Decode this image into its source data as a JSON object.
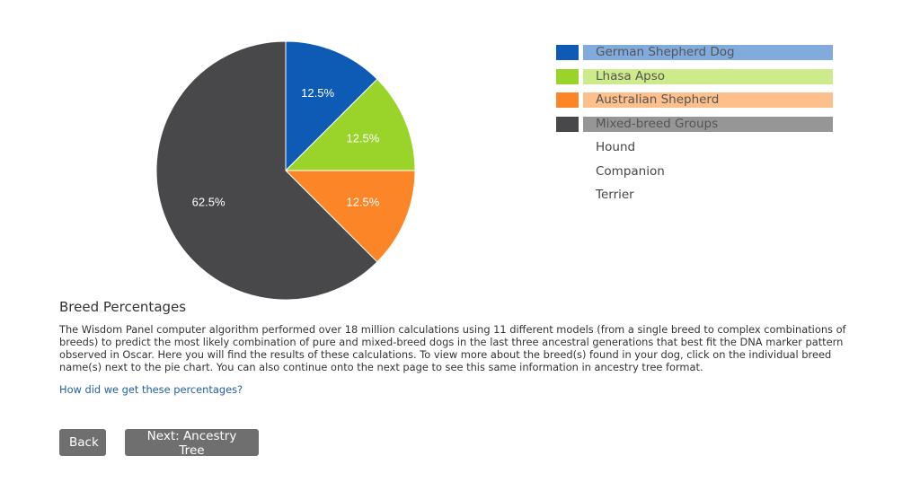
{
  "chart_data": {
    "type": "pie",
    "title": "",
    "slices": [
      {
        "label": "German Shepherd Dog",
        "value": 12.5,
        "display": "12.5%",
        "color": "#0d5bb5"
      },
      {
        "label": "Lhasa Apso",
        "value": 12.5,
        "display": "12.5%",
        "color": "#9ad42a"
      },
      {
        "label": "Australian Shepherd",
        "value": 12.5,
        "display": "12.5%",
        "color": "#fc8527"
      },
      {
        "label": "Mixed-breed Groups",
        "value": 62.5,
        "display": "62.5%",
        "color": "#48484a"
      }
    ],
    "legend_placement": "right"
  },
  "legend": {
    "items": [
      {
        "label": "German Shepherd Dog",
        "swatch_color": "#0d5bb5",
        "bar_color": "#80abdc"
      },
      {
        "label": "Lhasa Apso",
        "swatch_color": "#9ad42a",
        "bar_color": "#cdeb8a"
      },
      {
        "label": "Australian Shepherd",
        "swatch_color": "#fc8527",
        "bar_color": "#fdc08d"
      },
      {
        "label": "Mixed-breed Groups",
        "swatch_color": "#48484a",
        "bar_color": "#969696"
      }
    ],
    "groups": [
      "Hound",
      "Companion",
      "Terrier"
    ]
  },
  "section": {
    "title": "Breed Percentages",
    "description": "The Wisdom Panel computer algorithm performed over 18 million calculations using 11 different models (from a single breed to complex combinations of breeds) to predict the most likely combination of pure and mixed-breed dogs in the last three ancestral generations that best fit the DNA marker pattern observed in Oscar. Here you will find the results of these calculations. To view more about the breed(s) found in your dog, click on the individual breed name(s) next to the pie chart. You can also continue onto the next page to see this same information in ancestry tree format.",
    "link": "How did we get these percentages?"
  },
  "buttons": {
    "back": "Back",
    "next": "Next: Ancestry Tree"
  }
}
